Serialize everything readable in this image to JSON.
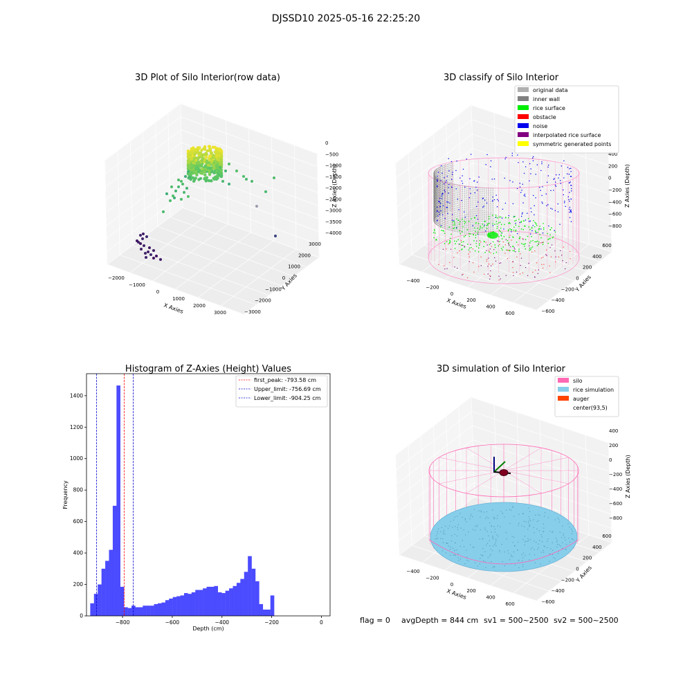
{
  "suptitle": "DJSSD10 2025-05-16 22:25:20",
  "footer": {
    "flag": "flag = 0",
    "avg": "avgDepth = 844 cm",
    "sv1": "sv1 = 500~2500",
    "sv2": "sv2 = 500~2500"
  },
  "chart_data": [
    {
      "type": "scatter",
      "title": "3D Plot of Silo Interior(row data)",
      "xlabel": "X Axies",
      "ylabel": "Y Axies",
      "zlabel": "Z Axies (Depth)",
      "x_ticks": [
        "−2000",
        "−1000",
        "0",
        "1000",
        "2000",
        "3000"
      ],
      "y_ticks": [
        "−3000",
        "−2000",
        "−1000",
        "0",
        "1000",
        "2000",
        "3000"
      ],
      "z_ticks": [
        "0",
        "−500",
        "−1000",
        "−1500",
        "−2000",
        "−2500",
        "−3000",
        "−3500",
        "−4000"
      ],
      "colormap": "viridis"
    },
    {
      "type": "scatter",
      "title": "3D classify of Silo Interior",
      "xlabel": "X Axies",
      "ylabel": "Y Axies",
      "zlabel": "Z Axies (Depth)",
      "x_ticks": [
        "−400",
        "−200",
        "0",
        "200",
        "400",
        "600"
      ],
      "y_ticks": [
        "−600",
        "−400",
        "−200",
        "0",
        "200",
        "400",
        "600"
      ],
      "z_ticks": [
        "400",
        "200",
        "0",
        "−200",
        "−400",
        "−600",
        "−800"
      ],
      "legend": [
        {
          "label": "original data",
          "color": "#b0b0b0"
        },
        {
          "label": "inner wall",
          "color": "#808080"
        },
        {
          "label": "rice surface",
          "color": "#00ee00"
        },
        {
          "label": "obstacle",
          "color": "#ff0000"
        },
        {
          "label": "noise",
          "color": "#0000ee"
        },
        {
          "label": "interpolated rice surface",
          "color": "#800080"
        },
        {
          "label": "symmetric generated points",
          "color": "#ffff00"
        }
      ]
    },
    {
      "type": "bar",
      "title": "Histogram of Z-Axies (Height) Values",
      "xlabel": "Depth (cm)",
      "ylabel": "Frequency",
      "xlim": [
        -945,
        35
      ],
      "ylim": [
        0,
        1540
      ],
      "x_ticks": [
        -800,
        -600,
        -400,
        -200,
        0
      ],
      "y_ticks": [
        0,
        200,
        400,
        600,
        800,
        1000,
        1200,
        1400
      ],
      "bin_start": -930,
      "bin_width": 15.1,
      "values": [
        80,
        140,
        200,
        300,
        350,
        420,
        700,
        1465,
        185,
        55,
        50,
        65,
        55,
        55,
        65,
        65,
        65,
        75,
        80,
        85,
        100,
        110,
        120,
        125,
        130,
        145,
        140,
        150,
        165,
        165,
        175,
        185,
        185,
        190,
        150,
        145,
        160,
        175,
        190,
        210,
        235,
        280,
        380,
        300,
        220,
        75,
        40,
        40,
        130
      ],
      "bar_color": "#4b4bff",
      "vlines": [
        {
          "x": -793.58,
          "color": "#ff0000",
          "label": "first_peak: -793.58 cm"
        },
        {
          "x": -756.69,
          "color": "#0000cc",
          "label": "Upper_limit: -756.69 cm"
        },
        {
          "x": -904.25,
          "color": "#0000cc",
          "label": "Lower_limit: -904.25 cm"
        }
      ]
    },
    {
      "type": "scatter",
      "title": "3D simulation of Silo Interior",
      "xlabel": "X Axies",
      "ylabel": "Y Axies",
      "zlabel": "Z Axies (Depth)",
      "x_ticks": [
        "−400",
        "−200",
        "0",
        "200",
        "400",
        "600"
      ],
      "y_ticks": [
        "−600",
        "−400",
        "−200",
        "0",
        "200",
        "400",
        "600"
      ],
      "z_ticks": [
        "400",
        "200",
        "0",
        "−200",
        "−400",
        "−600",
        "−800"
      ],
      "legend": [
        {
          "label": "silo",
          "color": "#ff69b4"
        },
        {
          "label": "rice simulation",
          "color": "#87ceeb"
        },
        {
          "label": "auger",
          "color": "#ff4500"
        },
        {
          "label": "center(93,5)",
          "color": "#ffffff"
        }
      ]
    }
  ]
}
